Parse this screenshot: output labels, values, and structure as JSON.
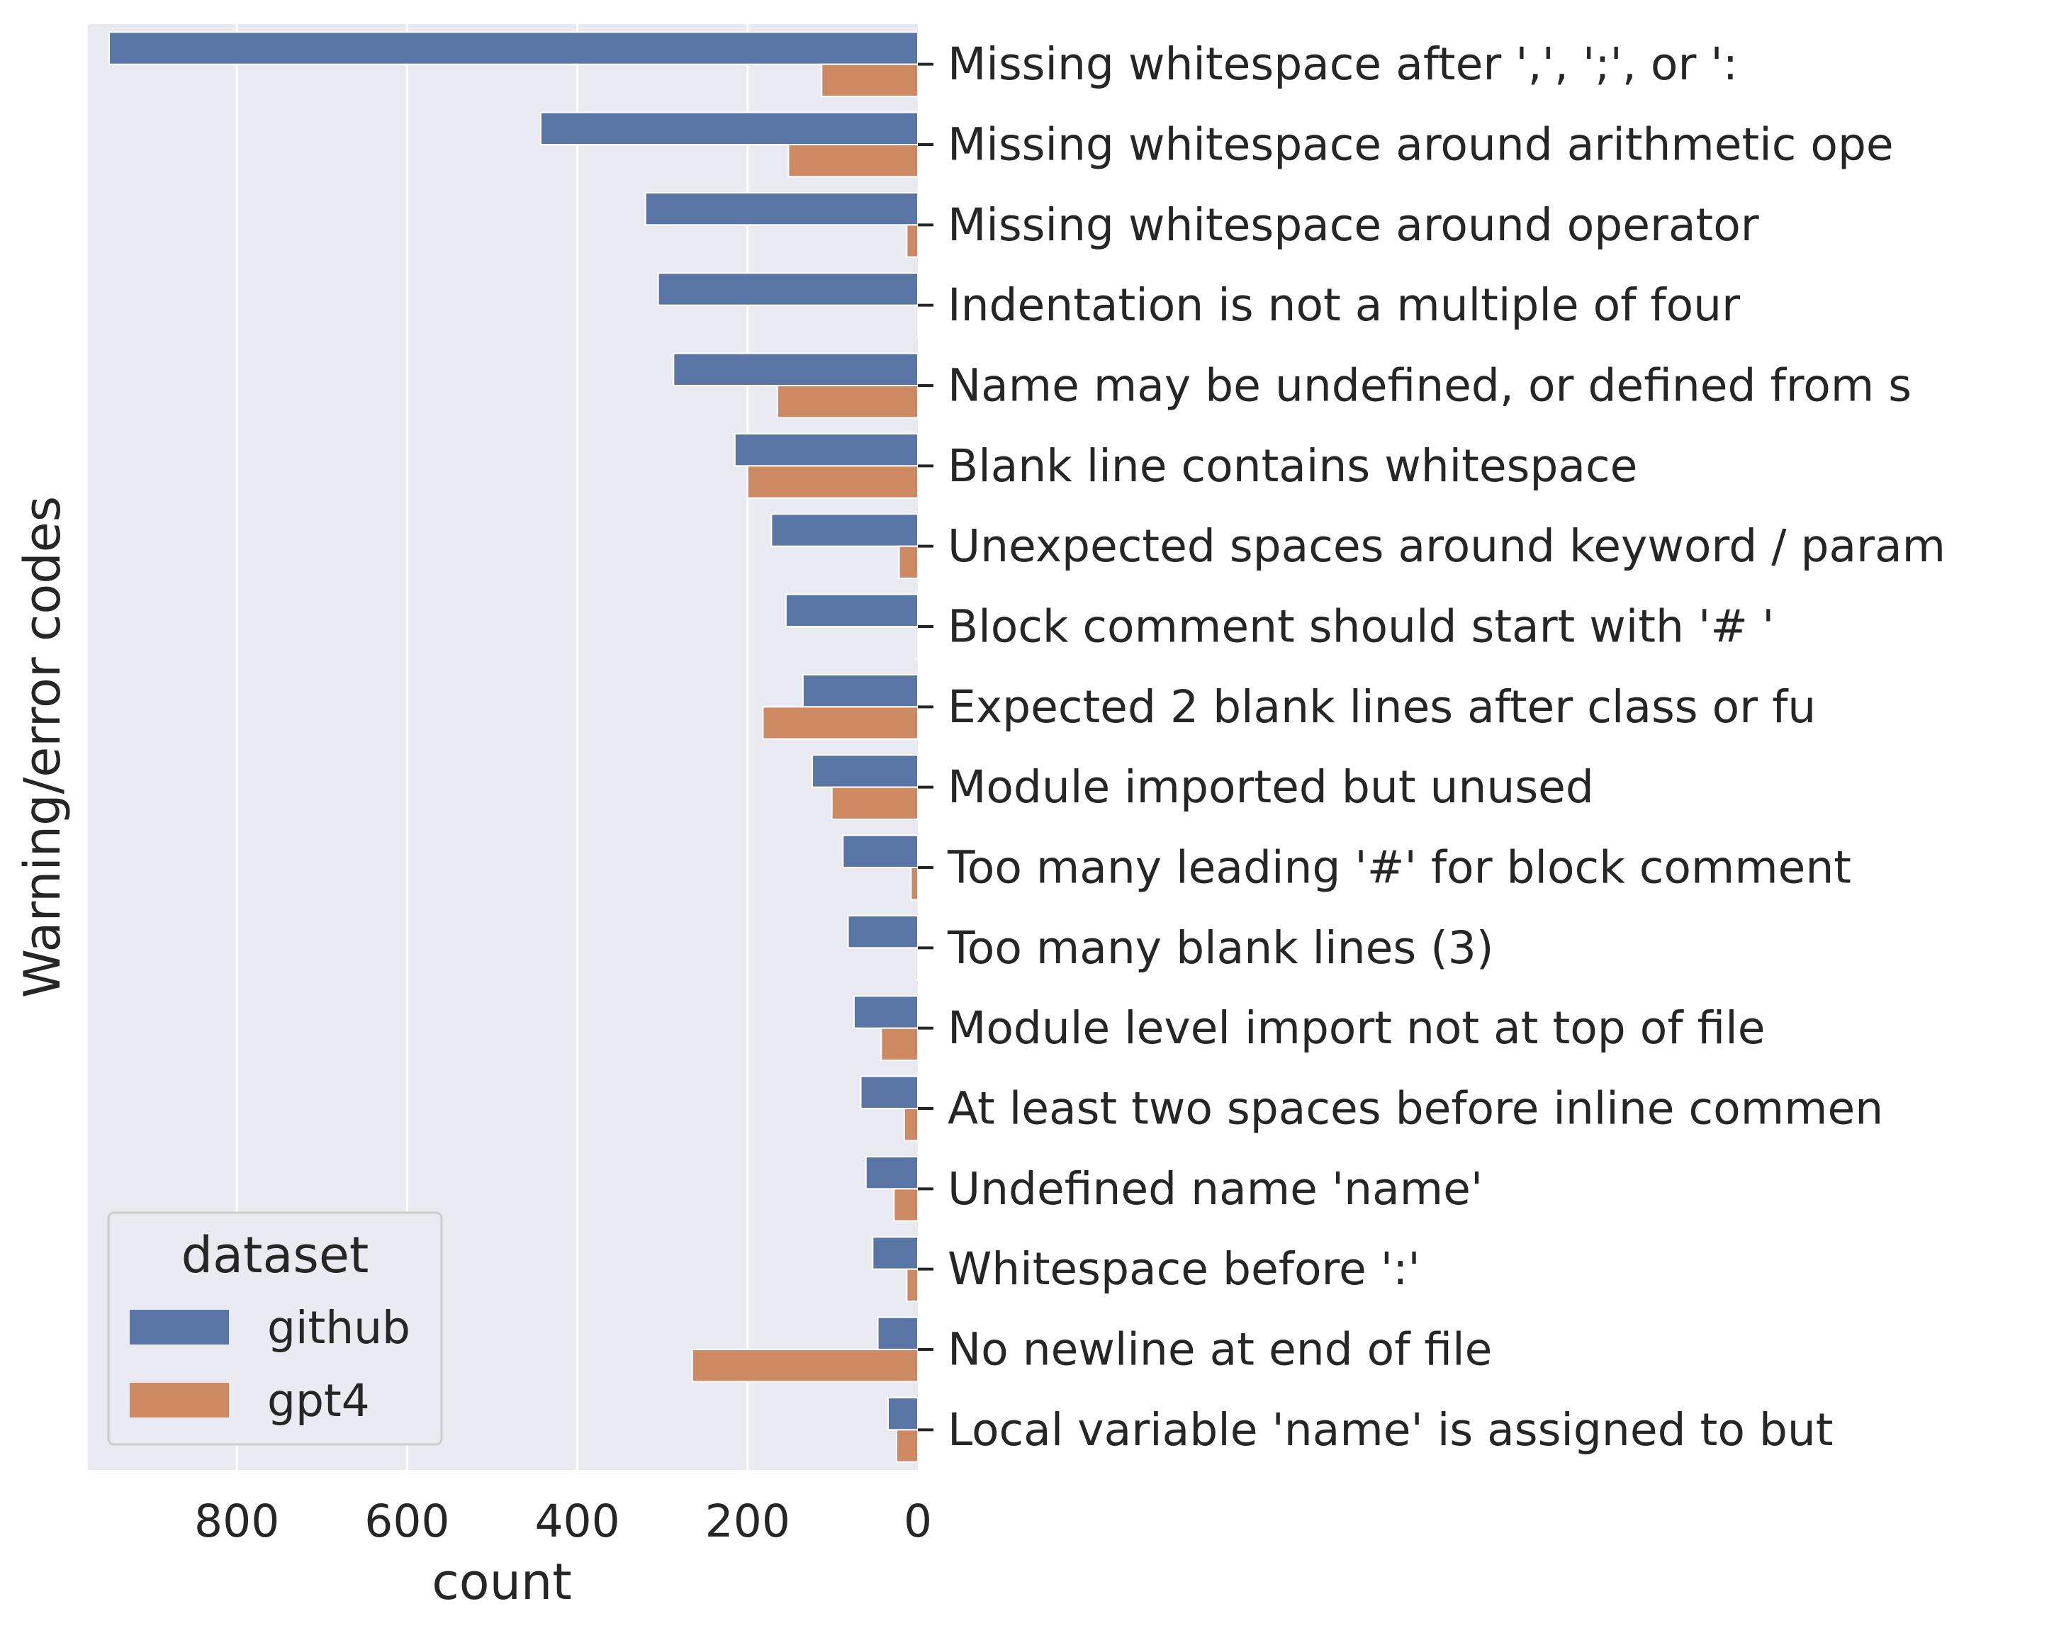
{
  "chart_data": {
    "type": "bar",
    "orientation": "horizontal",
    "x_axis_inverted": true,
    "y_axis_side": "right",
    "xlabel": "count",
    "ylabel": "Warning/error codes",
    "xlim": [
      0,
      975
    ],
    "xticks": [
      800,
      600,
      400,
      200,
      0
    ],
    "grid": true,
    "legend": {
      "title": "dataset",
      "position": "bottom-left"
    },
    "categories": [
      "Missing whitespace after ',', ';', or ':",
      "Missing whitespace around arithmetic ope",
      "Missing whitespace around operator",
      "Indentation is not a multiple of four",
      "Name may be undefined, or defined from s",
      "Blank line contains whitespace",
      "Unexpected spaces around keyword / param",
      "Block comment should start with '# '",
      "Expected 2 blank lines after class or fu",
      "Module imported but unused",
      "Too many leading '#' for block comment",
      "Too many blank lines (3)",
      "Module level import not at top of file",
      "At least two spaces before inline commen",
      "Undefined name 'name'",
      "Whitespace before ':'",
      "No newline at end of file",
      "Local variable 'name' is assigned to but"
    ],
    "series": [
      {
        "name": "github",
        "color": "#5875a6",
        "values": [
          950,
          443,
          320,
          305,
          287,
          215,
          172,
          155,
          135,
          124,
          88,
          82,
          75,
          67,
          61,
          53,
          47,
          35
        ]
      },
      {
        "name": "gpt4",
        "color": "#cd8961",
        "values": [
          113,
          152,
          13,
          2,
          165,
          200,
          22,
          2,
          182,
          101,
          8,
          2,
          43,
          16,
          28,
          13,
          265,
          25
        ]
      }
    ]
  }
}
